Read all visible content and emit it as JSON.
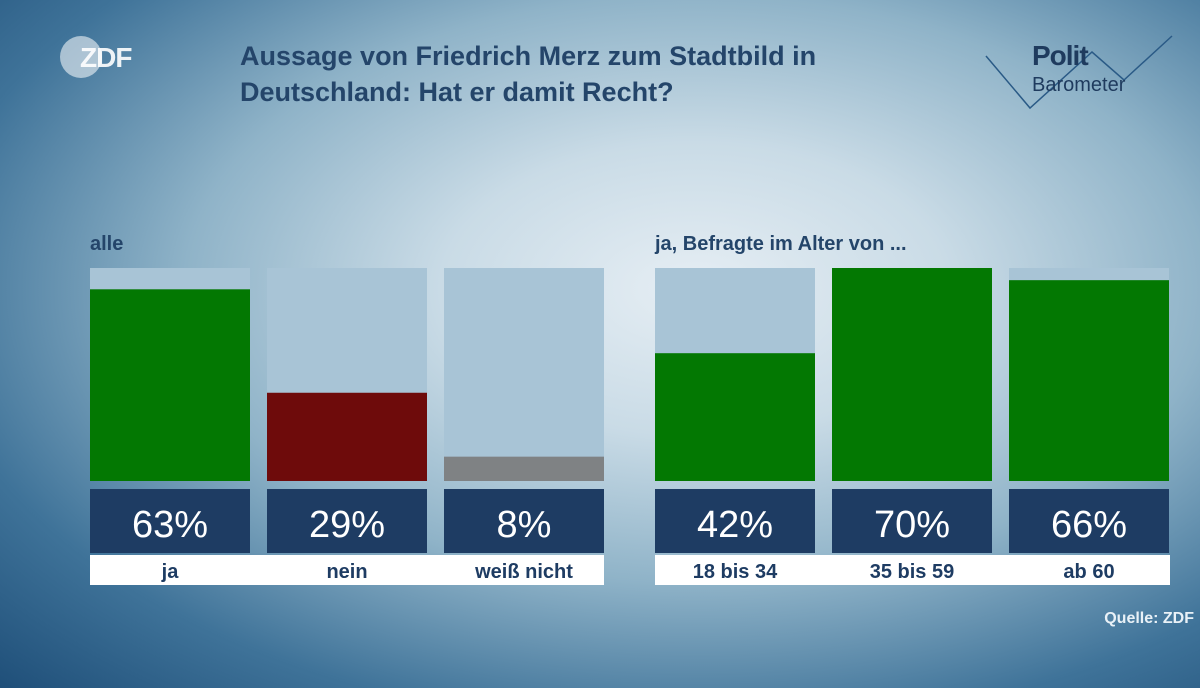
{
  "header": {
    "broadcaster": "ZDF",
    "title_line1": "Aussage von Friedrich Merz zum Stadtbild in",
    "title_line2": "Deutschland: Hat er damit Recht?",
    "logo_line1": "Polit",
    "logo_line2": "Barometer"
  },
  "sections": {
    "left_label": "alle",
    "right_label": "ja, Befragte im Alter von ..."
  },
  "source": "Quelle: ZDF",
  "colors": {
    "yes": "#037802",
    "no": "#6e0b0b",
    "dont_know": "#7f8284",
    "track": "#a8c4d6",
    "value_box": "#1e3c63",
    "value_text": "#ffffff",
    "label_box": "#ffffff",
    "label_text": "#1e3c63"
  },
  "chart_data": {
    "type": "bar",
    "title": "Aussage von Friedrich Merz zum Stadtbild in Deutschland: Hat er damit Recht?",
    "unit": "%",
    "ylim": [
      0,
      70
    ],
    "groups": [
      {
        "name": "alle",
        "categories": [
          "ja",
          "nein",
          "weiß nicht"
        ],
        "values": [
          63,
          29,
          8
        ],
        "colors": [
          "yes",
          "no",
          "dont_know"
        ]
      },
      {
        "name": "ja, Befragte im Alter von ...",
        "categories": [
          "18 bis 34",
          "35 bis 59",
          "ab 60"
        ],
        "values": [
          42,
          70,
          66
        ],
        "colors": [
          "yes",
          "yes",
          "yes"
        ]
      }
    ]
  }
}
